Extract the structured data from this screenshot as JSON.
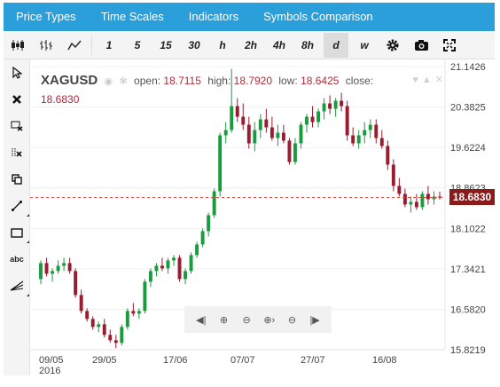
{
  "menu": [
    "Price Types",
    "Time Scales",
    "Indicators",
    "Symbols Comparison"
  ],
  "toolbar": {
    "icons": [
      "candles-icon",
      "ohlc-bars-icon",
      "line-chart-icon"
    ],
    "timescales": [
      "1",
      "5",
      "15",
      "30",
      "h",
      "2h",
      "4h",
      "8h",
      "d",
      "w"
    ],
    "active": "d",
    "tools": [
      "gear-icon",
      "camera-icon",
      "fullscreen-icon"
    ]
  },
  "sidebar": {
    "tools": [
      "cursor-icon",
      "delete-icon",
      "erase-selection-icon",
      "erase-all-icon",
      "clone-icon",
      "line-tool-icon",
      "rectangle-icon",
      "text-tool-icon",
      "fan-tool-icon"
    ],
    "text_tool_label": "abc"
  },
  "legend": {
    "symbol": "XAGUSD",
    "open_label": "open:",
    "open": "18.7115",
    "high_label": "high:",
    "high": "18.7920",
    "low_label": "low:",
    "low": "18.6425",
    "close_label": "close:",
    "close": "18.6830"
  },
  "price_axis": [
    "21.1426",
    "20.3825",
    "19.6224",
    "18.8623",
    "18.1022",
    "17.3421",
    "16.5820",
    "15.8219"
  ],
  "current_price": "18.6830",
  "date_axis": [
    {
      "label": "09/05",
      "sub": "2016"
    },
    {
      "label": "29/05",
      "sub": ""
    },
    {
      "label": "17/06",
      "sub": ""
    },
    {
      "label": "07/07",
      "sub": ""
    },
    {
      "label": "27/07",
      "sub": ""
    },
    {
      "label": "16/08",
      "sub": ""
    }
  ],
  "nav": [
    "scroll-left-icon",
    "zoom-in-icon",
    "zoom-out-icon",
    "zoom-in-right-icon",
    "zoom-out-center-icon",
    "scroll-right-icon"
  ],
  "colors": {
    "up": "#1a9c3e",
    "down": "#9b1b30",
    "menu": "#2b9fda",
    "price_tag": "#8b1a1a"
  },
  "chart_data": {
    "type": "candlestick",
    "symbol": "XAGUSD",
    "timeframe": "d",
    "ylim": [
      15.8219,
      21.1426
    ],
    "candles": [
      [
        17.15,
        17.5,
        17.05,
        17.45
      ],
      [
        17.45,
        17.55,
        17.2,
        17.25
      ],
      [
        17.25,
        17.35,
        17.1,
        17.3
      ],
      [
        17.3,
        17.5,
        17.25,
        17.4
      ],
      [
        17.4,
        17.55,
        17.3,
        17.45
      ],
      [
        17.45,
        17.55,
        17.25,
        17.3
      ],
      [
        17.3,
        17.35,
        16.8,
        16.85
      ],
      [
        16.85,
        16.95,
        16.5,
        16.55
      ],
      [
        16.55,
        16.6,
        16.35,
        16.4
      ],
      [
        16.4,
        16.45,
        16.2,
        16.25
      ],
      [
        16.25,
        16.35,
        16.15,
        16.3
      ],
      [
        16.3,
        16.4,
        16.05,
        16.1
      ],
      [
        16.1,
        16.2,
        15.95,
        16.0
      ],
      [
        16.0,
        16.1,
        15.85,
        15.95
      ],
      [
        15.95,
        16.3,
        15.9,
        16.25
      ],
      [
        16.25,
        16.6,
        16.2,
        16.55
      ],
      [
        16.55,
        16.7,
        16.45,
        16.5
      ],
      [
        16.5,
        16.6,
        16.4,
        16.55
      ],
      [
        16.55,
        17.15,
        16.5,
        17.1
      ],
      [
        17.1,
        17.35,
        17.0,
        17.3
      ],
      [
        17.3,
        17.45,
        17.2,
        17.4
      ],
      [
        17.4,
        17.55,
        17.3,
        17.35
      ],
      [
        17.35,
        17.55,
        17.25,
        17.5
      ],
      [
        17.5,
        17.6,
        17.4,
        17.55
      ],
      [
        17.55,
        17.6,
        17.1,
        17.15
      ],
      [
        17.15,
        17.35,
        17.05,
        17.3
      ],
      [
        17.3,
        17.65,
        17.25,
        17.6
      ],
      [
        17.6,
        17.85,
        17.55,
        17.8
      ],
      [
        17.8,
        18.1,
        17.75,
        18.05
      ],
      [
        18.05,
        18.4,
        17.95,
        18.35
      ],
      [
        18.35,
        18.85,
        18.3,
        18.8
      ],
      [
        18.8,
        19.9,
        18.7,
        19.85
      ],
      [
        19.85,
        20.1,
        19.7,
        19.95
      ],
      [
        19.95,
        21.1,
        19.9,
        20.4
      ],
      [
        20.4,
        20.55,
        20.1,
        20.2
      ],
      [
        20.2,
        20.45,
        19.95,
        20.05
      ],
      [
        20.05,
        20.2,
        19.6,
        19.7
      ],
      [
        19.7,
        20.1,
        19.55,
        19.95
      ],
      [
        19.95,
        20.25,
        19.8,
        20.15
      ],
      [
        20.15,
        20.35,
        19.9,
        20.0
      ],
      [
        20.0,
        20.2,
        19.75,
        19.8
      ],
      [
        19.8,
        20.05,
        19.65,
        19.9
      ],
      [
        19.9,
        20.05,
        19.7,
        19.75
      ],
      [
        19.75,
        19.8,
        19.3,
        19.35
      ],
      [
        19.35,
        19.8,
        19.3,
        19.7
      ],
      [
        19.7,
        20.1,
        19.6,
        20.05
      ],
      [
        20.05,
        20.25,
        19.9,
        20.2
      ],
      [
        20.2,
        20.4,
        20.0,
        20.1
      ],
      [
        20.1,
        20.35,
        20.0,
        20.3
      ],
      [
        20.3,
        20.55,
        20.15,
        20.45
      ],
      [
        20.45,
        20.6,
        20.25,
        20.35
      ],
      [
        20.35,
        20.55,
        20.2,
        20.5
      ],
      [
        20.5,
        20.65,
        20.3,
        20.4
      ],
      [
        20.4,
        20.5,
        19.75,
        19.85
      ],
      [
        19.85,
        20.0,
        19.65,
        19.7
      ],
      [
        19.7,
        19.95,
        19.6,
        19.85
      ],
      [
        19.85,
        20.1,
        19.7,
        19.95
      ],
      [
        19.95,
        20.15,
        19.8,
        20.05
      ],
      [
        20.05,
        20.15,
        19.7,
        19.8
      ],
      [
        19.8,
        19.95,
        19.6,
        19.65
      ],
      [
        19.65,
        19.75,
        19.2,
        19.3
      ],
      [
        19.3,
        19.4,
        18.8,
        18.9
      ],
      [
        18.9,
        19.05,
        18.7,
        18.75
      ],
      [
        18.75,
        18.85,
        18.5,
        18.55
      ],
      [
        18.55,
        18.7,
        18.4,
        18.6
      ],
      [
        18.6,
        18.75,
        18.45,
        18.5
      ],
      [
        18.5,
        18.8,
        18.45,
        18.75
      ],
      [
        18.75,
        18.9,
        18.55,
        18.65
      ],
      [
        18.65,
        18.8,
        18.55,
        18.7
      ],
      [
        18.7,
        18.792,
        18.6425,
        18.683
      ]
    ]
  }
}
